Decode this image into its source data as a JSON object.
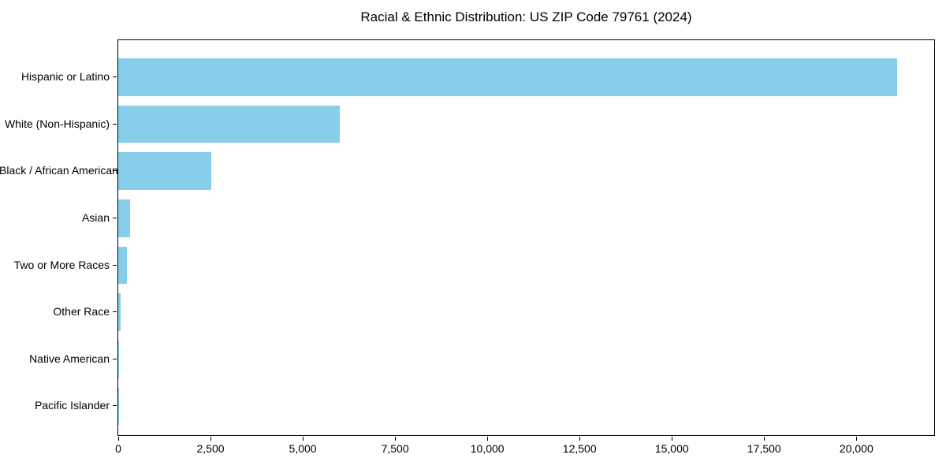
{
  "title": "Racial & Ethnic Distribution: US ZIP Code 79761 (2024)",
  "chart_data": {
    "type": "bar",
    "orientation": "horizontal",
    "title": "Racial & Ethnic Distribution: US ZIP Code 79761 (2024)",
    "categories": [
      "Hispanic or Latino",
      "White (Non-Hispanic)",
      "Black / African American",
      "Asian",
      "Two or More Races",
      "Other Race",
      "Native American",
      "Pacific Islander"
    ],
    "values": [
      21100,
      6000,
      2520,
      315,
      245,
      55,
      25,
      5
    ],
    "xlabel": "",
    "ylabel": "",
    "xlim": [
      0,
      22150
    ],
    "x_ticks": [
      0,
      2500,
      5000,
      7500,
      10000,
      12500,
      15000,
      17500,
      20000
    ],
    "x_tick_labels": [
      "0",
      "2,500",
      "5,000",
      "7,500",
      "10,000",
      "12,500",
      "15,000",
      "17,500",
      "20,000"
    ],
    "bar_color": "#87CEEB",
    "axis_color": "#000000",
    "background_color": "#ffffff",
    "grid": false,
    "legend": null,
    "category_axis_inverted_top_first": true
  }
}
